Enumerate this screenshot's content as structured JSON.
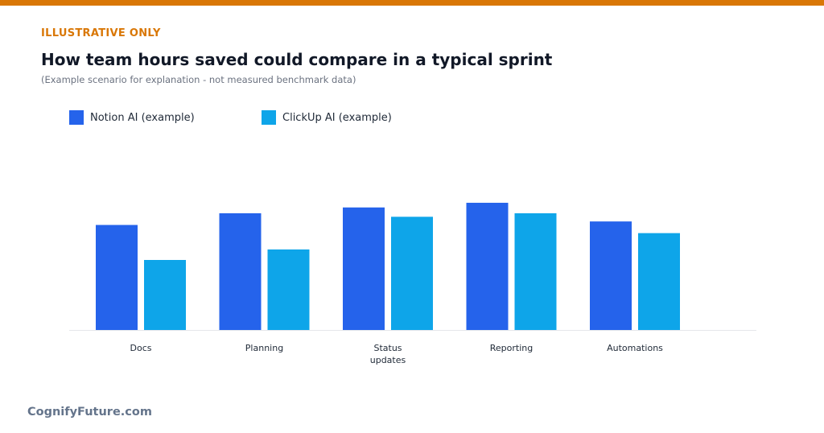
{
  "header": {
    "kicker": "ILLUSTRATIVE ONLY",
    "title": "How team hours saved could compare in a typical sprint",
    "subtitle": "(Example scenario for explanation - not measured benchmark data)"
  },
  "footer": {
    "brand": "CognifyFuture.com"
  },
  "colors": {
    "accent": "#d97706",
    "notion": "#2563eb",
    "clickup": "#0ea5e9",
    "axis": "#e5e7eb"
  },
  "chart_data": {
    "type": "bar",
    "title": "How team hours saved could compare in a typical sprint",
    "subtitle": "(Example scenario for explanation - not measured benchmark data)",
    "categories": [
      [
        "Docs"
      ],
      [
        "Planning"
      ],
      [
        "Status",
        "updates"
      ],
      [
        "Reporting"
      ],
      [
        "Automations"
      ]
    ],
    "series": [
      {
        "name": "Notion AI (example)",
        "color": "#2563eb",
        "values": [
          9,
          10,
          10.5,
          10.9,
          9.3
        ]
      },
      {
        "name": "ClickUp AI (example)",
        "color": "#0ea5e9",
        "values": [
          6,
          6.9,
          9.7,
          10,
          8.3
        ]
      }
    ],
    "ylim": [
      0,
      20
    ],
    "grid": false,
    "legend_position": "top-left",
    "xlabel": "",
    "ylabel": ""
  }
}
